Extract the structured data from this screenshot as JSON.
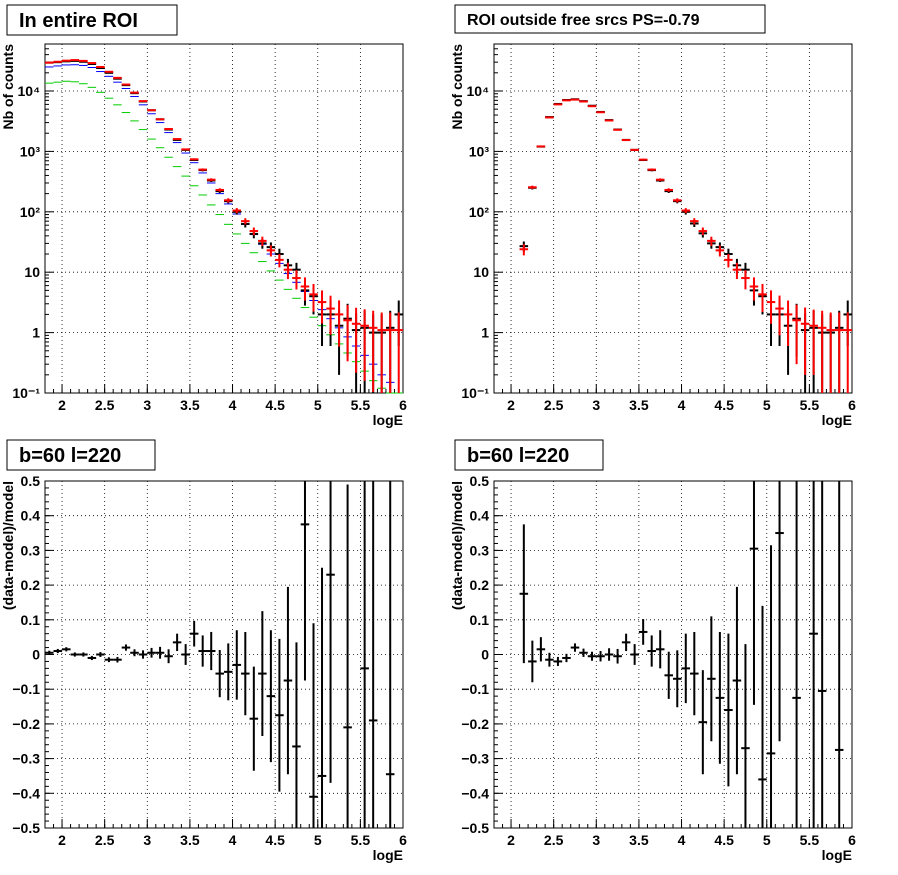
{
  "panels": [
    {
      "title": "In entire ROI",
      "xlabel": "logE",
      "ylabel": "Nb of counts",
      "xticks": [
        "2",
        "2.5",
        "3",
        "3.5",
        "4",
        "4.5",
        "5",
        "5.5",
        "6"
      ],
      "yticks": [
        "10⁻¹",
        "1",
        "10",
        "10²",
        "10³",
        "10⁴"
      ]
    },
    {
      "title": "ROI outside free srcs PS=-0.79",
      "xlabel": "logE",
      "ylabel": "Nb of counts",
      "xticks": [
        "2",
        "2.5",
        "3",
        "3.5",
        "4",
        "4.5",
        "5",
        "5.5",
        "6"
      ],
      "yticks": [
        "10⁻¹",
        "1",
        "10",
        "10²",
        "10³",
        "10⁴"
      ]
    },
    {
      "title": "b=60 l=220",
      "xlabel": "logE",
      "ylabel": "(data-model)/model",
      "xticks": [
        "2",
        "2.5",
        "3",
        "3.5",
        "4",
        "4.5",
        "5",
        "5.5",
        "6"
      ],
      "yticks": [
        "−0.5",
        "−0.4",
        "−0.3",
        "−0.2",
        "−0.1",
        "0",
        "0.1",
        "0.2",
        "0.3",
        "0.4",
        "0.5"
      ]
    },
    {
      "title": "b=60 l=220",
      "xlabel": "logE",
      "ylabel": "(data-model)/model",
      "xticks": [
        "2",
        "2.5",
        "3",
        "3.5",
        "4",
        "4.5",
        "5",
        "5.5",
        "6"
      ],
      "yticks": [
        "−0.5",
        "−0.4",
        "−0.3",
        "−0.2",
        "−0.1",
        "0",
        "0.1",
        "0.2",
        "0.3",
        "0.4",
        "0.5"
      ]
    }
  ],
  "chart_data": [
    {
      "type": "scatter",
      "title": "In entire ROI",
      "xlabel": "logE",
      "ylabel": "Nb of counts",
      "xlim": [
        1.8,
        6.0
      ],
      "ylim": [
        0.1,
        60000
      ],
      "yscale": "log",
      "grid": true,
      "bin_width": 0.1,
      "x": [
        1.85,
        1.95,
        2.05,
        2.15,
        2.25,
        2.35,
        2.45,
        2.55,
        2.65,
        2.75,
        2.85,
        2.95,
        3.05,
        3.15,
        3.25,
        3.35,
        3.45,
        3.55,
        3.65,
        3.75,
        3.85,
        3.95,
        4.05,
        4.15,
        4.25,
        4.35,
        4.45,
        4.55,
        4.65,
        4.75,
        4.85,
        4.95,
        5.05,
        5.15,
        5.25,
        5.35,
        5.45,
        5.55,
        5.65,
        5.75,
        5.85,
        5.95
      ],
      "series": [
        {
          "color": "#000000",
          "role": "data points with error bars",
          "values": [
            29500,
            30000,
            31000,
            31500,
            30500,
            28000,
            24000,
            20000,
            16000,
            12500,
            9200,
            6700,
            4800,
            3400,
            2300,
            1550,
            1060,
            720,
            490,
            330,
            220,
            150,
            100,
            63,
            43,
            30,
            26,
            20,
            13,
            11,
            5,
            4,
            2,
            2,
            1.3,
            1.7,
            1.1,
            1.2,
            1.0,
            1.0,
            1.2,
            2.0
          ],
          "errors": [
            170,
            170,
            176,
            177,
            175,
            167,
            155,
            141,
            126,
            112,
            96,
            82,
            69,
            58,
            48,
            39,
            33,
            27,
            22,
            18,
            15,
            12,
            10,
            8,
            6.6,
            5.5,
            5.1,
            4.5,
            3.6,
            3.3,
            2.2,
            2,
            1.4,
            1.4,
            1.1,
            1.3,
            1.0,
            1.1,
            1.0,
            1.0,
            1.1,
            1.4
          ]
        },
        {
          "color": "#ff0000",
          "role": "total model",
          "values": [
            29500,
            30500,
            31800,
            32500,
            31500,
            29000,
            25000,
            20800,
            16500,
            12800,
            9400,
            6800,
            4800,
            3400,
            2350,
            1600,
            1080,
            740,
            500,
            340,
            230,
            155,
            105,
            70,
            48,
            33,
            23,
            16,
            11,
            8,
            5.8,
            4.3,
            3.2,
            2.5,
            2,
            1.6,
            1.4,
            1.3,
            1.2,
            1.1,
            1.1,
            1.1
          ]
        },
        {
          "color": "#0000ff",
          "role": "model component",
          "values": [
            25000,
            26000,
            27000,
            27200,
            26500,
            24500,
            21000,
            17500,
            14000,
            11000,
            8100,
            5900,
            4200,
            3000,
            2050,
            1400,
            940,
            650,
            440,
            300,
            200,
            135,
            92,
            62,
            42,
            29,
            20,
            14,
            9.5,
            6.8,
            4.8,
            3.4,
            2.4,
            1.7,
            1.2,
            0.85,
            0.6,
            0.42,
            0.3,
            0.2,
            0.15,
            0.1
          ]
        },
        {
          "color": "#00cc00",
          "role": "model component",
          "values": [
            13500,
            14000,
            14500,
            14200,
            13200,
            11500,
            9500,
            7600,
            5900,
            4400,
            3200,
            2300,
            1600,
            1150,
            800,
            560,
            390,
            270,
            190,
            130,
            90,
            62,
            43,
            30,
            21,
            15,
            10.5,
            7.4,
            5.2,
            3.7,
            2.6,
            1.8,
            1.3,
            0.92,
            0.65,
            0.46,
            0.33,
            0.23,
            0.16,
            0.12,
            0.1,
            0.1
          ]
        }
      ]
    },
    {
      "type": "scatter",
      "title": "ROI outside free srcs PS=-0.79",
      "xlabel": "logE",
      "ylabel": "Nb of counts",
      "xlim": [
        1.8,
        6.0
      ],
      "ylim": [
        0.1,
        60000
      ],
      "yscale": "log",
      "grid": true,
      "bin_width": 0.1,
      "x": [
        2.15,
        2.25,
        2.35,
        2.45,
        2.55,
        2.65,
        2.75,
        2.85,
        2.95,
        3.05,
        3.15,
        3.25,
        3.35,
        3.45,
        3.55,
        3.65,
        3.75,
        3.85,
        3.95,
        4.05,
        4.15,
        4.25,
        4.35,
        4.45,
        4.55,
        4.65,
        4.75,
        4.85,
        4.95,
        5.05,
        5.15,
        5.25,
        5.35,
        5.45,
        5.55,
        5.65,
        5.75,
        5.85,
        5.95
      ],
      "series": [
        {
          "color": "#000000",
          "role": "data points with error bars",
          "values": [
            27,
            250,
            1200,
            3700,
            6100,
            7100,
            7300,
            6800,
            5700,
            4500,
            3300,
            2300,
            1550,
            1060,
            720,
            490,
            330,
            220,
            150,
            100,
            64,
            44,
            30,
            26,
            20,
            13,
            11,
            5,
            4,
            2,
            2,
            1.3,
            1.7,
            1.1,
            1.2,
            1.0,
            1.0,
            1.2,
            2.0
          ],
          "errors": [
            5.2,
            16,
            35,
            61,
            78,
            84,
            85,
            82,
            75,
            67,
            57,
            48,
            39,
            33,
            27,
            22,
            18,
            15,
            12,
            10,
            8,
            6.6,
            5.5,
            5.1,
            4.5,
            3.6,
            3.3,
            2.2,
            2,
            1.4,
            1.4,
            1.1,
            1.3,
            1.0,
            1.1,
            1.0,
            1.0,
            1.1,
            1.4
          ]
        },
        {
          "color": "#ff0000",
          "role": "model",
          "values": [
            24,
            255,
            1210,
            3650,
            6000,
            7000,
            7200,
            6700,
            5600,
            4450,
            3250,
            2280,
            1540,
            1060,
            730,
            500,
            340,
            230,
            155,
            105,
            70,
            48,
            33,
            23,
            16,
            11,
            8,
            5.8,
            4.3,
            3.2,
            2.5,
            2,
            1.6,
            1.4,
            1.3,
            1.2,
            1.1,
            1.1,
            1.1
          ],
          "errors": [
            5,
            16,
            35,
            60,
            77,
            84,
            85,
            82,
            75,
            67,
            57,
            48,
            39,
            33,
            27,
            22,
            18,
            15,
            12,
            10,
            8.4,
            6.9,
            5.7,
            4.8,
            4,
            3.3,
            2.8,
            2.4,
            2.1,
            1.8,
            1.6,
            1.4,
            1.3,
            1.2,
            1.1,
            1.1,
            1.05,
            1.05,
            1.05
          ]
        }
      ]
    },
    {
      "type": "scatter",
      "title": "b=60 l=220",
      "xlabel": "logE",
      "ylabel": "(data-model)/model",
      "xlim": [
        1.8,
        6.0
      ],
      "ylim": [
        -0.5,
        0.5
      ],
      "grid": true,
      "bin_width": 0.1,
      "x": [
        1.85,
        1.95,
        2.05,
        2.15,
        2.25,
        2.35,
        2.45,
        2.55,
        2.65,
        2.75,
        2.85,
        2.95,
        3.05,
        3.15,
        3.25,
        3.35,
        3.45,
        3.55,
        3.65,
        3.75,
        3.85,
        3.95,
        4.05,
        4.15,
        4.25,
        4.35,
        4.45,
        4.55,
        4.65,
        4.75,
        4.85,
        4.95,
        5.05,
        5.15,
        5.35,
        5.55,
        5.65,
        5.85
      ],
      "y": [
        0.005,
        0.01,
        0.015,
        0.0,
        0.0,
        -0.01,
        0.0,
        -0.015,
        -0.015,
        0.02,
        0.005,
        0.0,
        0.005,
        0.005,
        -0.005,
        0.035,
        0.0,
        0.06,
        0.01,
        0.01,
        -0.055,
        -0.05,
        -0.03,
        -0.055,
        -0.185,
        -0.055,
        -0.12,
        -0.175,
        -0.075,
        -0.265,
        0.375,
        -0.41,
        -0.35,
        0.23,
        -0.21,
        -0.04,
        -0.19,
        -0.345
      ],
      "yerr": [
        0.006,
        0.006,
        0.006,
        0.006,
        0.006,
        0.006,
        0.007,
        0.007,
        0.008,
        0.009,
        0.01,
        0.012,
        0.014,
        0.017,
        0.02,
        0.025,
        0.03,
        0.037,
        0.045,
        0.055,
        0.068,
        0.082,
        0.1,
        0.12,
        0.15,
        0.18,
        0.19,
        0.22,
        0.27,
        0.3,
        0.45,
        0.5,
        0.6,
        0.6,
        0.7,
        0.8,
        0.8,
        0.9
      ]
    },
    {
      "type": "scatter",
      "title": "b=60 l=220",
      "xlabel": "logE",
      "ylabel": "(data-model)/model",
      "xlim": [
        1.8,
        6.0
      ],
      "ylim": [
        -0.5,
        0.5
      ],
      "grid": true,
      "bin_width": 0.1,
      "x": [
        2.15,
        2.25,
        2.35,
        2.45,
        2.55,
        2.65,
        2.75,
        2.85,
        2.95,
        3.05,
        3.15,
        3.25,
        3.35,
        3.45,
        3.55,
        3.65,
        3.75,
        3.85,
        3.95,
        4.05,
        4.15,
        4.25,
        4.35,
        4.45,
        4.55,
        4.65,
        4.75,
        4.85,
        4.95,
        5.05,
        5.15,
        5.35,
        5.55,
        5.65,
        5.85
      ],
      "y": [
        0.175,
        -0.02,
        0.015,
        -0.015,
        -0.02,
        -0.01,
        0.02,
        0.005,
        -0.005,
        -0.005,
        0.0,
        -0.005,
        0.035,
        0.0,
        0.065,
        0.01,
        0.015,
        -0.06,
        -0.07,
        -0.04,
        -0.055,
        -0.195,
        -0.07,
        -0.125,
        -0.16,
        -0.075,
        -0.27,
        0.305,
        -0.36,
        -0.285,
        0.35,
        -0.125,
        0.06,
        -0.105,
        -0.275
      ],
      "yerr": [
        0.2,
        0.06,
        0.035,
        0.02,
        0.013,
        0.012,
        0.012,
        0.012,
        0.013,
        0.015,
        0.018,
        0.021,
        0.025,
        0.03,
        0.037,
        0.045,
        0.055,
        0.068,
        0.082,
        0.1,
        0.12,
        0.15,
        0.18,
        0.19,
        0.22,
        0.27,
        0.3,
        0.45,
        0.5,
        0.6,
        0.6,
        0.7,
        0.8,
        0.8,
        0.9
      ]
    }
  ]
}
